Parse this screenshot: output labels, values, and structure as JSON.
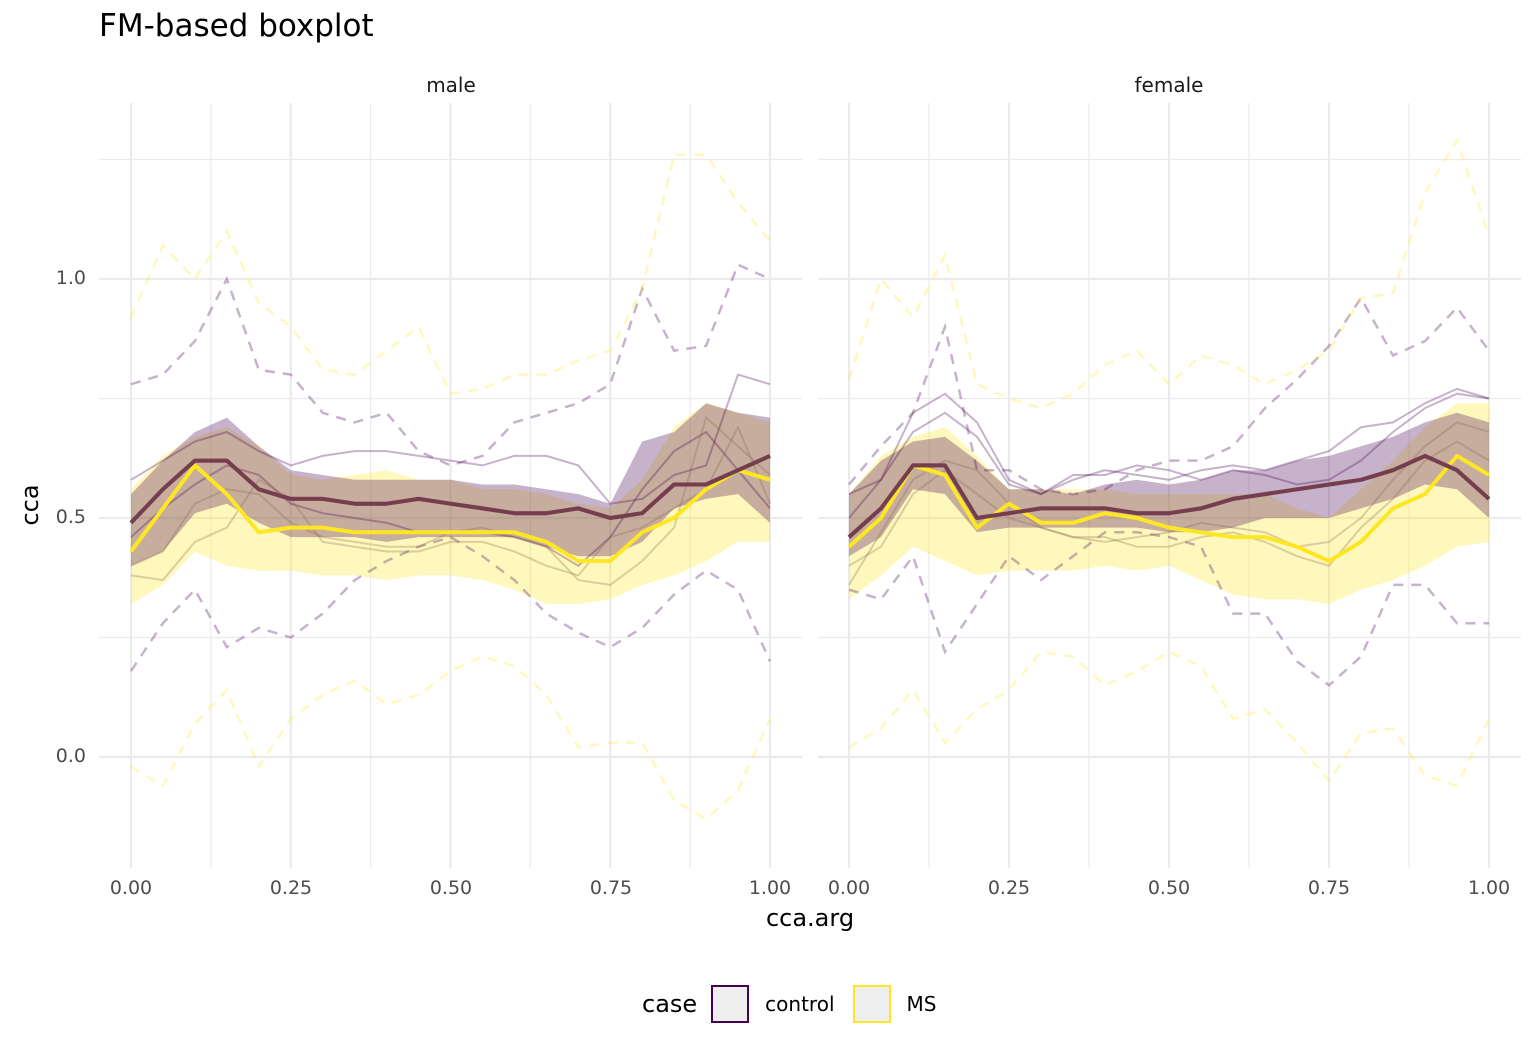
{
  "chart_data": {
    "type": "line",
    "title": "FM-based boxplot",
    "xlabel": "cca.arg",
    "ylabel": "cca",
    "xlim": [
      0,
      1
    ],
    "ylim": [
      -0.22,
      1.37
    ],
    "x_ticks": [
      "0.00",
      "0.25",
      "0.50",
      "0.75",
      "1.00"
    ],
    "x_tick_values": [
      0,
      0.25,
      0.5,
      0.75,
      1
    ],
    "y_ticks": [
      "0.0",
      "0.5",
      "1.0"
    ],
    "y_tick_values": [
      0,
      0.5,
      1.0
    ],
    "grid": true,
    "legend": {
      "title": "case",
      "position": "bottom",
      "entries": [
        {
          "label": "control",
          "color": "#440154"
        },
        {
          "label": "MS",
          "color": "#FDE725"
        }
      ]
    },
    "x": [
      0,
      0.05,
      0.1,
      0.15,
      0.2,
      0.25,
      0.3,
      0.35,
      0.4,
      0.45,
      0.5,
      0.55,
      0.6,
      0.65,
      0.7,
      0.75,
      0.8,
      0.85,
      0.9,
      0.95,
      1.0
    ],
    "panels": [
      {
        "name": "male",
        "series": [
          {
            "group": "control",
            "role": "median",
            "values": [
              0.49,
              0.56,
              0.62,
              0.62,
              0.56,
              0.54,
              0.54,
              0.53,
              0.53,
              0.54,
              0.53,
              0.52,
              0.51,
              0.51,
              0.52,
              0.5,
              0.51,
              0.57,
              0.57,
              0.6,
              0.63
            ]
          },
          {
            "group": "MS",
            "role": "median",
            "values": [
              0.43,
              0.52,
              0.61,
              0.55,
              0.47,
              0.48,
              0.48,
              0.47,
              0.47,
              0.47,
              0.47,
              0.47,
              0.47,
              0.45,
              0.41,
              0.41,
              0.47,
              0.5,
              0.56,
              0.6,
              0.58
            ]
          },
          {
            "group": "control",
            "role": "band_upper",
            "values": [
              0.55,
              0.62,
              0.68,
              0.71,
              0.65,
              0.6,
              0.59,
              0.58,
              0.58,
              0.58,
              0.58,
              0.57,
              0.57,
              0.56,
              0.55,
              0.53,
              0.66,
              0.68,
              0.74,
              0.72,
              0.71
            ]
          },
          {
            "group": "control",
            "role": "band_lower",
            "values": [
              0.4,
              0.43,
              0.51,
              0.53,
              0.49,
              0.46,
              0.46,
              0.46,
              0.45,
              0.46,
              0.46,
              0.46,
              0.46,
              0.44,
              0.42,
              0.42,
              0.45,
              0.52,
              0.54,
              0.55,
              0.49
            ]
          },
          {
            "group": "MS",
            "role": "band_upper",
            "values": [
              0.56,
              0.63,
              0.67,
              0.69,
              0.65,
              0.59,
              0.58,
              0.59,
              0.6,
              0.58,
              0.58,
              0.56,
              0.56,
              0.55,
              0.53,
              0.52,
              0.58,
              0.69,
              0.74,
              0.72,
              0.7
            ]
          },
          {
            "group": "MS",
            "role": "band_lower",
            "values": [
              0.32,
              0.36,
              0.43,
              0.4,
              0.39,
              0.39,
              0.38,
              0.38,
              0.37,
              0.38,
              0.38,
              0.37,
              0.35,
              0.32,
              0.32,
              0.33,
              0.36,
              0.38,
              0.41,
              0.45,
              0.45
            ]
          },
          {
            "group": "control",
            "role": "whisker_upper",
            "values": [
              0.78,
              0.8,
              0.87,
              1.0,
              0.81,
              0.8,
              0.72,
              0.7,
              0.72,
              0.64,
              0.61,
              0.63,
              0.7,
              0.72,
              0.74,
              0.78,
              0.98,
              0.85,
              0.86,
              1.03,
              1.0
            ]
          },
          {
            "group": "control",
            "role": "whisker_lower",
            "values": [
              0.18,
              0.28,
              0.35,
              0.23,
              0.27,
              0.25,
              0.3,
              0.37,
              0.41,
              0.44,
              0.46,
              0.42,
              0.37,
              0.3,
              0.26,
              0.23,
              0.27,
              0.34,
              0.39,
              0.35,
              0.2
            ]
          },
          {
            "group": "MS",
            "role": "whisker_upper",
            "values": [
              0.92,
              1.07,
              1.0,
              1.1,
              0.95,
              0.9,
              0.81,
              0.8,
              0.85,
              0.9,
              0.76,
              0.77,
              0.8,
              0.8,
              0.83,
              0.85,
              0.98,
              1.26,
              1.26,
              1.16,
              1.08
            ]
          },
          {
            "group": "MS",
            "role": "whisker_lower",
            "values": [
              -0.02,
              -0.06,
              0.07,
              0.14,
              -0.02,
              0.08,
              0.13,
              0.16,
              0.11,
              0.13,
              0.18,
              0.21,
              0.19,
              0.13,
              0.02,
              0.03,
              0.03,
              -0.09,
              -0.13,
              -0.07,
              0.08
            ]
          },
          {
            "group": "control",
            "role": "curve",
            "values": [
              0.58,
              0.62,
              0.66,
              0.68,
              0.64,
              0.61,
              0.63,
              0.64,
              0.64,
              0.63,
              0.62,
              0.61,
              0.63,
              0.63,
              0.61,
              0.53,
              0.54,
              0.59,
              0.61,
              0.8,
              0.78
            ]
          },
          {
            "group": "control",
            "role": "curve",
            "values": [
              0.46,
              0.52,
              0.57,
              0.61,
              0.59,
              0.53,
              0.51,
              0.5,
              0.49,
              0.47,
              0.47,
              0.47,
              0.46,
              0.44,
              0.4,
              0.46,
              0.56,
              0.64,
              0.68,
              0.6,
              0.52
            ]
          },
          {
            "group": "MS",
            "role": "curve",
            "values": [
              0.4,
              0.43,
              0.53,
              0.56,
              0.55,
              0.49,
              0.46,
              0.45,
              0.44,
              0.44,
              0.47,
              0.48,
              0.46,
              0.44,
              0.37,
              0.36,
              0.41,
              0.48,
              0.71,
              0.65,
              0.59
            ]
          },
          {
            "group": "MS",
            "role": "curve",
            "values": [
              0.38,
              0.37,
              0.45,
              0.48,
              0.58,
              0.54,
              0.45,
              0.44,
              0.43,
              0.43,
              0.45,
              0.45,
              0.43,
              0.4,
              0.38,
              0.46,
              0.48,
              0.52,
              0.56,
              0.69,
              0.53
            ]
          }
        ]
      },
      {
        "name": "female",
        "series": [
          {
            "group": "control",
            "role": "median",
            "values": [
              0.46,
              0.52,
              0.61,
              0.61,
              0.5,
              0.51,
              0.52,
              0.52,
              0.52,
              0.51,
              0.51,
              0.52,
              0.54,
              0.55,
              0.56,
              0.57,
              0.58,
              0.6,
              0.63,
              0.6,
              0.54
            ]
          },
          {
            "group": "MS",
            "role": "median",
            "values": [
              0.44,
              0.5,
              0.61,
              0.59,
              0.48,
              0.53,
              0.49,
              0.49,
              0.51,
              0.5,
              0.48,
              0.47,
              0.46,
              0.46,
              0.44,
              0.41,
              0.45,
              0.52,
              0.55,
              0.63,
              0.59
            ]
          },
          {
            "group": "control",
            "role": "band_upper",
            "values": [
              0.55,
              0.62,
              0.66,
              0.67,
              0.62,
              0.56,
              0.56,
              0.55,
              0.57,
              0.58,
              0.57,
              0.58,
              0.6,
              0.6,
              0.62,
              0.63,
              0.65,
              0.67,
              0.7,
              0.72,
              0.7
            ]
          },
          {
            "group": "control",
            "role": "band_lower",
            "values": [
              0.42,
              0.46,
              0.56,
              0.55,
              0.47,
              0.48,
              0.48,
              0.48,
              0.48,
              0.48,
              0.47,
              0.47,
              0.48,
              0.5,
              0.5,
              0.5,
              0.52,
              0.54,
              0.57,
              0.56,
              0.5
            ]
          },
          {
            "group": "MS",
            "role": "band_upper",
            "values": [
              0.55,
              0.63,
              0.67,
              0.69,
              0.63,
              0.56,
              0.56,
              0.56,
              0.56,
              0.55,
              0.55,
              0.55,
              0.55,
              0.55,
              0.52,
              0.5,
              0.56,
              0.62,
              0.69,
              0.74,
              0.74
            ]
          },
          {
            "group": "MS",
            "role": "band_lower",
            "values": [
              0.33,
              0.38,
              0.44,
              0.41,
              0.38,
              0.39,
              0.39,
              0.39,
              0.4,
              0.39,
              0.4,
              0.37,
              0.34,
              0.33,
              0.33,
              0.32,
              0.35,
              0.37,
              0.4,
              0.44,
              0.45
            ]
          },
          {
            "group": "control",
            "role": "whisker_upper",
            "values": [
              0.57,
              0.65,
              0.72,
              0.9,
              0.6,
              0.6,
              0.56,
              0.55,
              0.56,
              0.6,
              0.62,
              0.62,
              0.65,
              0.73,
              0.79,
              0.86,
              0.96,
              0.84,
              0.87,
              0.94,
              0.85
            ]
          },
          {
            "group": "control",
            "role": "whisker_lower",
            "values": [
              0.35,
              0.33,
              0.42,
              0.22,
              0.32,
              0.42,
              0.37,
              0.42,
              0.47,
              0.47,
              0.46,
              0.44,
              0.3,
              0.3,
              0.2,
              0.15,
              0.21,
              0.36,
              0.36,
              0.28,
              0.28
            ]
          },
          {
            "group": "MS",
            "role": "whisker_upper",
            "values": [
              0.79,
              1.0,
              0.92,
              1.05,
              0.78,
              0.75,
              0.73,
              0.76,
              0.82,
              0.85,
              0.78,
              0.84,
              0.82,
              0.78,
              0.81,
              0.85,
              0.96,
              0.97,
              1.18,
              1.29,
              1.09
            ]
          },
          {
            "group": "MS",
            "role": "whisker_lower",
            "values": [
              0.02,
              0.06,
              0.14,
              0.03,
              0.1,
              0.14,
              0.22,
              0.21,
              0.15,
              0.18,
              0.22,
              0.19,
              0.08,
              0.1,
              0.03,
              -0.05,
              0.05,
              0.06,
              -0.04,
              -0.06,
              0.08
            ]
          },
          {
            "group": "control",
            "role": "curve",
            "values": [
              0.5,
              0.58,
              0.72,
              0.76,
              0.7,
              0.58,
              0.55,
              0.59,
              0.59,
              0.61,
              0.6,
              0.58,
              0.6,
              0.59,
              0.57,
              0.58,
              0.62,
              0.68,
              0.73,
              0.76,
              0.75
            ]
          },
          {
            "group": "control",
            "role": "curve",
            "values": [
              0.55,
              0.58,
              0.68,
              0.72,
              0.67,
              0.57,
              0.55,
              0.58,
              0.6,
              0.59,
              0.58,
              0.6,
              0.61,
              0.6,
              0.62,
              0.64,
              0.69,
              0.7,
              0.74,
              0.77,
              0.75
            ]
          },
          {
            "group": "MS",
            "role": "curve",
            "values": [
              0.36,
              0.47,
              0.58,
              0.62,
              0.6,
              0.53,
              0.48,
              0.46,
              0.46,
              0.44,
              0.44,
              0.46,
              0.47,
              0.45,
              0.42,
              0.4,
              0.48,
              0.54,
              0.62,
              0.66,
              0.62
            ]
          },
          {
            "group": "MS",
            "role": "curve",
            "values": [
              0.4,
              0.44,
              0.55,
              0.6,
              0.55,
              0.5,
              0.48,
              0.46,
              0.45,
              0.46,
              0.47,
              0.49,
              0.48,
              0.47,
              0.44,
              0.45,
              0.5,
              0.58,
              0.65,
              0.7,
              0.68
            ]
          }
        ]
      }
    ]
  }
}
